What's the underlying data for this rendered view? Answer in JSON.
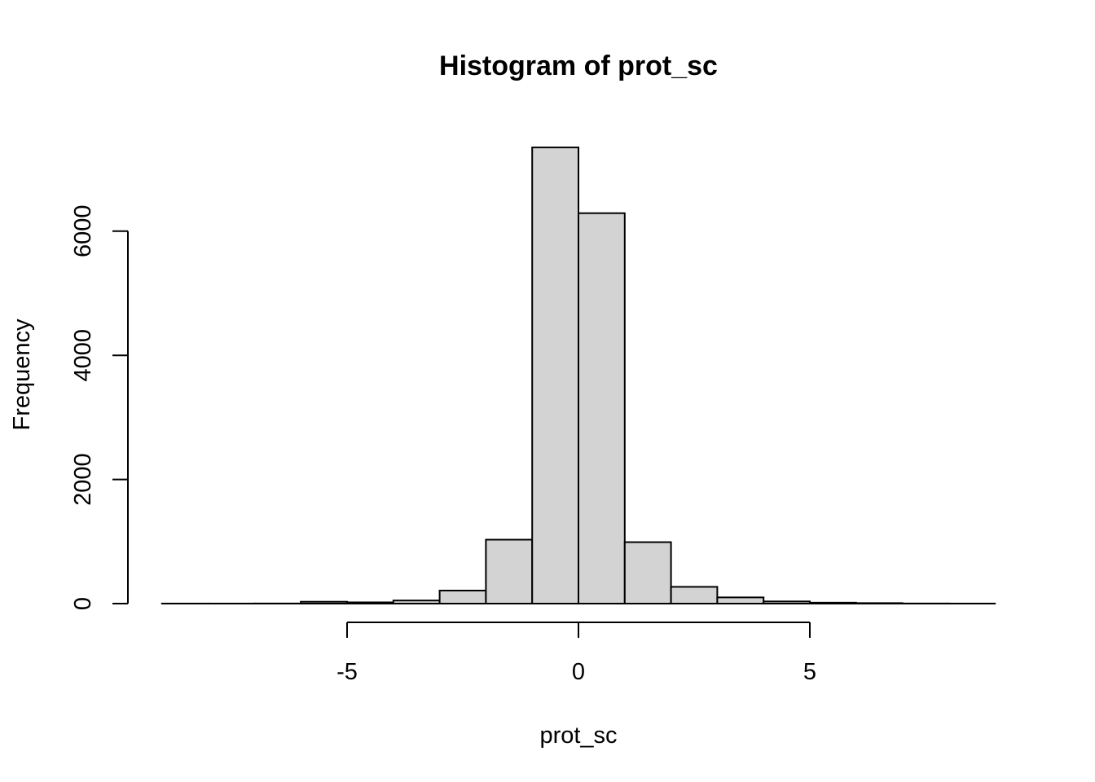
{
  "chart_data": {
    "type": "bar",
    "title": "Histogram of prot_sc",
    "xlabel": "prot_sc",
    "ylabel": "Frequency",
    "bar_color": "#d3d3d3",
    "edge_color": "#000000",
    "x_ticks": [
      -5,
      0,
      5
    ],
    "y_ticks": [
      0,
      2000,
      4000,
      6000
    ],
    "xlim": [
      -9,
      9
    ],
    "ylim": [
      0,
      7350
    ],
    "bins": [
      {
        "x0": -9,
        "x1": -8,
        "count": 1
      },
      {
        "x0": -8,
        "x1": -7,
        "count": 1
      },
      {
        "x0": -7,
        "x1": -6,
        "count": 2
      },
      {
        "x0": -6,
        "x1": -5,
        "count": 30
      },
      {
        "x0": -5,
        "x1": -4,
        "count": 20
      },
      {
        "x0": -4,
        "x1": -3,
        "count": 50
      },
      {
        "x0": -3,
        "x1": -2,
        "count": 210
      },
      {
        "x0": -2,
        "x1": -1,
        "count": 1030
      },
      {
        "x0": -1,
        "x1": 0,
        "count": 7350
      },
      {
        "x0": 0,
        "x1": 1,
        "count": 6290
      },
      {
        "x0": 1,
        "x1": 2,
        "count": 990
      },
      {
        "x0": 2,
        "x1": 3,
        "count": 270
      },
      {
        "x0": 3,
        "x1": 4,
        "count": 100
      },
      {
        "x0": 4,
        "x1": 5,
        "count": 35
      },
      {
        "x0": 5,
        "x1": 6,
        "count": 15
      },
      {
        "x0": 6,
        "x1": 7,
        "count": 8
      },
      {
        "x0": 7,
        "x1": 8,
        "count": 2
      },
      {
        "x0": 8,
        "x1": 9,
        "count": 1
      }
    ]
  }
}
